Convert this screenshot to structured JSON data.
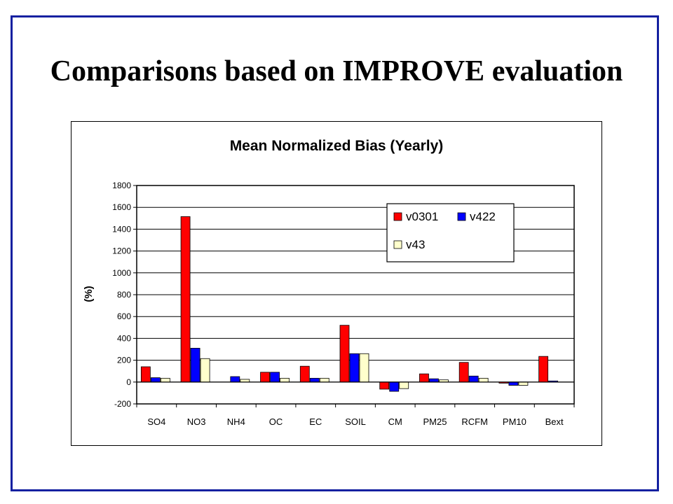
{
  "slide": {
    "title": "Comparisons based on IMPROVE evaluation",
    "border_color": "#1420a0"
  },
  "chart_data": {
    "type": "bar",
    "title": "Mean Normalized Bias (Yearly)",
    "xlabel": "",
    "ylabel": "(%)",
    "ylim": [
      -200,
      1800
    ],
    "yticks": [
      -200,
      0,
      200,
      400,
      600,
      800,
      1000,
      1200,
      1400,
      1600,
      1800
    ],
    "grid": true,
    "legend_position": "top-right",
    "categories": [
      "SO4",
      "NO3",
      "NH4",
      "OC",
      "EC",
      "SOIL",
      "CM",
      "PM25",
      "RCFM",
      "PM10",
      "Bext"
    ],
    "series": [
      {
        "name": "v0301",
        "color": "#ff0000",
        "values": [
          140,
          1515,
          0,
          90,
          145,
          520,
          -65,
          75,
          180,
          -10,
          235
        ]
      },
      {
        "name": "v422",
        "color": "#0000ff",
        "values": [
          40,
          310,
          50,
          90,
          35,
          260,
          -85,
          30,
          55,
          -30,
          10
        ]
      },
      {
        "name": "v43",
        "color": "#ffffcc",
        "values": [
          35,
          215,
          25,
          35,
          35,
          260,
          -60,
          20,
          35,
          -30,
          0
        ]
      }
    ]
  }
}
